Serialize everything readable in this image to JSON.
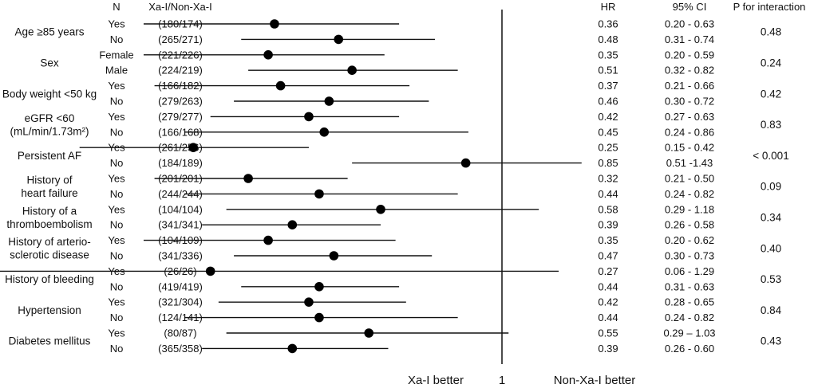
{
  "headers": {
    "n": "N",
    "counts": "Xa-I/Non-Xa-I",
    "hr": "HR",
    "ci": "95% CI",
    "p": "P for interaction"
  },
  "axis": {
    "left_label": "Xa-I better",
    "center_label": "1",
    "right_label": "Non-Xa-I better"
  },
  "groups": [
    {
      "label_lines": [
        "Age ≥85 years"
      ],
      "p": "0.48"
    },
    {
      "label_lines": [
        "Sex"
      ],
      "p": "0.24"
    },
    {
      "label_lines": [
        "Body weight <50 kg"
      ],
      "p": "0.42"
    },
    {
      "label_lines": [
        "eGFR <60",
        "(mL/min/1.73m²)"
      ],
      "p": "0.83"
    },
    {
      "label_lines": [
        "Persistent AF"
      ],
      "p": "< 0.001"
    },
    {
      "label_lines": [
        "History of",
        "heart failure"
      ],
      "p": "0.09"
    },
    {
      "label_lines": [
        "History of a",
        "thromboembolism"
      ],
      "p": "0.34"
    },
    {
      "label_lines": [
        "History of arterio-",
        "sclerotic disease"
      ],
      "p": "0.40"
    },
    {
      "label_lines": [
        "History of bleeding"
      ],
      "p": "0.53"
    },
    {
      "label_lines": [
        "Hypertension"
      ],
      "p": "0.84"
    },
    {
      "label_lines": [
        "Diabetes mellitus"
      ],
      "p": "0.43"
    }
  ],
  "chart_data": {
    "type": "forest",
    "reference_value": 1,
    "rows": [
      {
        "group": 0,
        "sub": "Yes",
        "counts": "(180/174)",
        "hr": 0.36,
        "lo": 0.2,
        "hi": 0.63,
        "hr_text": "0.36",
        "ci_text": "0.20 - 0.63"
      },
      {
        "group": 0,
        "sub": "No",
        "counts": "(265/271)",
        "hr": 0.48,
        "lo": 0.31,
        "hi": 0.74,
        "hr_text": "0.48",
        "ci_text": "0.31 - 0.74"
      },
      {
        "group": 1,
        "sub": "Female",
        "counts": "(221/226)",
        "hr": 0.35,
        "lo": 0.2,
        "hi": 0.59,
        "hr_text": "0.35",
        "ci_text": "0.20 - 0.59"
      },
      {
        "group": 1,
        "sub": "Male",
        "counts": "(224/219)",
        "hr": 0.51,
        "lo": 0.32,
        "hi": 0.82,
        "hr_text": "0.51",
        "ci_text": "0.32 - 0.82"
      },
      {
        "group": 2,
        "sub": "Yes",
        "counts": "(166/182)",
        "hr": 0.37,
        "lo": 0.21,
        "hi": 0.66,
        "hr_text": "0.37",
        "ci_text": "0.21 - 0.66"
      },
      {
        "group": 2,
        "sub": "No",
        "counts": "(279/263)",
        "hr": 0.46,
        "lo": 0.3,
        "hi": 0.72,
        "hr_text": "0.46",
        "ci_text": "0.30 - 0.72"
      },
      {
        "group": 3,
        "sub": "Yes",
        "counts": "(279/277)",
        "hr": 0.42,
        "lo": 0.27,
        "hi": 0.63,
        "hr_text": "0.42",
        "ci_text": "0.27 - 0.63"
      },
      {
        "group": 3,
        "sub": "No",
        "counts": "(166/168)",
        "hr": 0.45,
        "lo": 0.24,
        "hi": 0.86,
        "hr_text": "0.45",
        "ci_text": "0.24 - 0.86"
      },
      {
        "group": 4,
        "sub": "Yes",
        "counts": "(261/256)",
        "hr": 0.25,
        "lo": 0.15,
        "hi": 0.42,
        "hr_text": "0.25",
        "ci_text": "0.15 - 0.42"
      },
      {
        "group": 4,
        "sub": "No",
        "counts": "(184/189)",
        "hr": 0.85,
        "lo": 0.51,
        "hi": 1.43,
        "hr_text": "0.85",
        "ci_text": "0.51 -1.43"
      },
      {
        "group": 5,
        "sub": "Yes",
        "counts": "(201/201)",
        "hr": 0.32,
        "lo": 0.21,
        "hi": 0.5,
        "hr_text": "0.32",
        "ci_text": "0.21 - 0.50"
      },
      {
        "group": 5,
        "sub": "No",
        "counts": "(244/244)",
        "hr": 0.44,
        "lo": 0.24,
        "hi": 0.82,
        "hr_text": "0.44",
        "ci_text": "0.24 - 0.82"
      },
      {
        "group": 6,
        "sub": "Yes",
        "counts": "(104/104)",
        "hr": 0.58,
        "lo": 0.29,
        "hi": 1.18,
        "hr_text": "0.58",
        "ci_text": "0.29 - 1.18"
      },
      {
        "group": 6,
        "sub": "No",
        "counts": "(341/341)",
        "hr": 0.39,
        "lo": 0.26,
        "hi": 0.58,
        "hr_text": "0.39",
        "ci_text": "0.26 - 0.58"
      },
      {
        "group": 7,
        "sub": "Yes",
        "counts": "(104/109)",
        "hr": 0.35,
        "lo": 0.2,
        "hi": 0.62,
        "hr_text": "0.35",
        "ci_text": "0.20 - 0.62"
      },
      {
        "group": 7,
        "sub": "No",
        "counts": "(341/336)",
        "hr": 0.47,
        "lo": 0.3,
        "hi": 0.73,
        "hr_text": "0.47",
        "ci_text": "0.30 - 0.73"
      },
      {
        "group": 8,
        "sub": "Yes",
        "counts": "(26/26)",
        "hr": 0.27,
        "lo": 0.06,
        "hi": 1.29,
        "hr_text": "0.27",
        "ci_text": "0.06 - 1.29"
      },
      {
        "group": 8,
        "sub": "No",
        "counts": "(419/419)",
        "hr": 0.44,
        "lo": 0.31,
        "hi": 0.63,
        "hr_text": "0.44",
        "ci_text": "0.31 - 0.63"
      },
      {
        "group": 9,
        "sub": "Yes",
        "counts": "(321/304)",
        "hr": 0.42,
        "lo": 0.28,
        "hi": 0.65,
        "hr_text": "0.42",
        "ci_text": "0.28 - 0.65"
      },
      {
        "group": 9,
        "sub": "No",
        "counts": "(124/141)",
        "hr": 0.44,
        "lo": 0.24,
        "hi": 0.82,
        "hr_text": "0.44",
        "ci_text": "0.24 - 0.82"
      },
      {
        "group": 10,
        "sub": "Yes",
        "counts": "(80/87)",
        "hr": 0.55,
        "lo": 0.29,
        "hi": 1.03,
        "hr_text": "0.55",
        "ci_text": "0.29 – 1.03"
      },
      {
        "group": 10,
        "sub": "No",
        "counts": "(365/358)",
        "hr": 0.39,
        "lo": 0.26,
        "hi": 0.6,
        "hr_text": "0.39",
        "ci_text": "0.26 - 0.60"
      }
    ]
  }
}
